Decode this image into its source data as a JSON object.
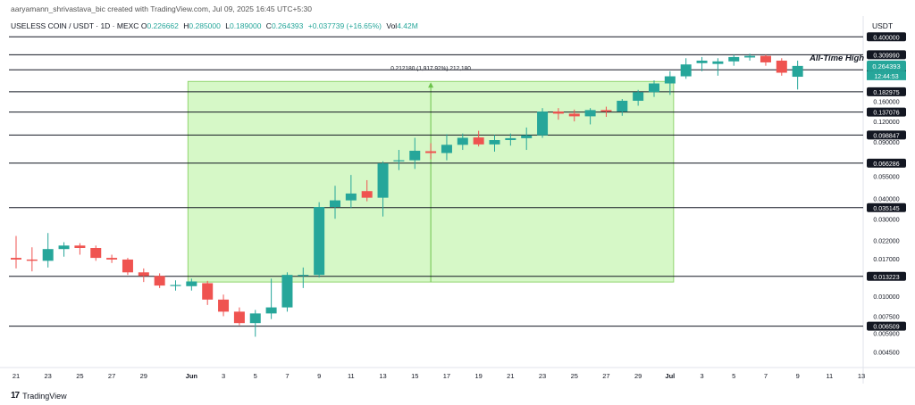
{
  "header": {
    "attribution": "aaryamann_shrivastava_bic created with TradingView.com, Jul 09, 2025 16:45 UTC+5:30",
    "symbol": "USELESS COIN / USDT · 1D · MEXC",
    "ohlc": [
      {
        "key": "O",
        "value": "0.226662"
      },
      {
        "key": "H",
        "value": "0.285000"
      },
      {
        "key": "L",
        "value": "0.189000"
      },
      {
        "key": "C",
        "value": "0.264393"
      }
    ],
    "change": "+0.037739 (+16.65%)",
    "volume_label": "Vol",
    "volume_value": "4.42M",
    "currency": "USDT"
  },
  "annotations": {
    "ath_label": "All-Time High",
    "measure_label": "0.212180 (1,917.92%) 212,180"
  },
  "footer": {
    "brand": "TradingView",
    "brand_mark": "17"
  },
  "colors": {
    "up": "#26a69a",
    "down": "#ef5350",
    "level_line": "#131722",
    "measure_fill": "#c8f5b4",
    "measure_border": "#8fd46e",
    "axis_text": "#131722"
  },
  "chart_data": {
    "type": "candlestick",
    "y_scale": "log",
    "ylim": [
      0.0038,
      0.45
    ],
    "levels": [
      "0.400000",
      "0.309990",
      "0.250139",
      "0.182975",
      "0.137076",
      "0.098847",
      "0.066286",
      "0.035145",
      "0.013223",
      "0.006509"
    ],
    "y_ticks": [
      "0.160000",
      "0.120000",
      "0.090000",
      "0.055000",
      "0.040000",
      "0.030000",
      "0.022000",
      "0.017000",
      "0.010000",
      "0.007500",
      "0.005900",
      "0.004500"
    ],
    "last_price": "0.264393",
    "countdown": "12:44:53",
    "x_ticks": [
      {
        "day": 0,
        "label": "21"
      },
      {
        "day": 2,
        "label": "23"
      },
      {
        "day": 4,
        "label": "25"
      },
      {
        "day": 6,
        "label": "27"
      },
      {
        "day": 8,
        "label": "29"
      },
      {
        "day": 11,
        "label": "Jun"
      },
      {
        "day": 13,
        "label": "3"
      },
      {
        "day": 15,
        "label": "5"
      },
      {
        "day": 17,
        "label": "7"
      },
      {
        "day": 19,
        "label": "9"
      },
      {
        "day": 21,
        "label": "11"
      },
      {
        "day": 23,
        "label": "13"
      },
      {
        "day": 25,
        "label": "15"
      },
      {
        "day": 27,
        "label": "17"
      },
      {
        "day": 29,
        "label": "19"
      },
      {
        "day": 31,
        "label": "21"
      },
      {
        "day": 33,
        "label": "23"
      },
      {
        "day": 35,
        "label": "25"
      },
      {
        "day": 37,
        "label": "27"
      },
      {
        "day": 39,
        "label": "29"
      },
      {
        "day": 41,
        "label": "Jul"
      },
      {
        "day": 43,
        "label": "3"
      },
      {
        "day": 45,
        "label": "5"
      },
      {
        "day": 47,
        "label": "7"
      },
      {
        "day": 49,
        "label": "9"
      },
      {
        "day": 51,
        "label": "11"
      },
      {
        "day": 53,
        "label": "13"
      }
    ],
    "measure_zone": {
      "day_start": 11,
      "day_end": 41,
      "price_low": 0.0122,
      "price_high": 0.212
    },
    "candles": [
      {
        "day": 0,
        "o": 0.0172,
        "h": 0.0235,
        "l": 0.0148,
        "c": 0.0168
      },
      {
        "day": 1,
        "o": 0.0168,
        "h": 0.02,
        "l": 0.0142,
        "c": 0.0165
      },
      {
        "day": 2,
        "o": 0.0165,
        "h": 0.0245,
        "l": 0.015,
        "c": 0.0195
      },
      {
        "day": 3,
        "o": 0.0195,
        "h": 0.0215,
        "l": 0.0175,
        "c": 0.0205
      },
      {
        "day": 4,
        "o": 0.0205,
        "h": 0.0212,
        "l": 0.018,
        "c": 0.0198
      },
      {
        "day": 5,
        "o": 0.0198,
        "h": 0.0205,
        "l": 0.0165,
        "c": 0.0172
      },
      {
        "day": 6,
        "o": 0.0172,
        "h": 0.018,
        "l": 0.016,
        "c": 0.0168
      },
      {
        "day": 7,
        "o": 0.0168,
        "h": 0.0172,
        "l": 0.0135,
        "c": 0.014
      },
      {
        "day": 8,
        "o": 0.014,
        "h": 0.0148,
        "l": 0.0122,
        "c": 0.0133
      },
      {
        "day": 9,
        "o": 0.0133,
        "h": 0.0138,
        "l": 0.0112,
        "c": 0.0116
      },
      {
        "day": 10,
        "o": 0.0116,
        "h": 0.0125,
        "l": 0.0108,
        "c": 0.0117
      },
      {
        "day": 11,
        "o": 0.0115,
        "h": 0.0128,
        "l": 0.0108,
        "c": 0.0123
      },
      {
        "day": 12,
        "o": 0.012,
        "h": 0.0124,
        "l": 0.0088,
        "c": 0.0095
      },
      {
        "day": 13,
        "o": 0.0095,
        "h": 0.0102,
        "l": 0.0075,
        "c": 0.008
      },
      {
        "day": 14,
        "o": 0.008,
        "h": 0.0085,
        "l": 0.0066,
        "c": 0.0068
      },
      {
        "day": 15,
        "o": 0.0068,
        "h": 0.0082,
        "l": 0.0056,
        "c": 0.0078
      },
      {
        "day": 16,
        "o": 0.0078,
        "h": 0.0128,
        "l": 0.0072,
        "c": 0.0085
      },
      {
        "day": 17,
        "o": 0.0085,
        "h": 0.014,
        "l": 0.008,
        "c": 0.0135
      },
      {
        "day": 18,
        "o": 0.0135,
        "h": 0.015,
        "l": 0.0112,
        "c": 0.0135
      },
      {
        "day": 19,
        "o": 0.0135,
        "h": 0.038,
        "l": 0.013,
        "c": 0.0355
      },
      {
        "day": 20,
        "o": 0.0355,
        "h": 0.048,
        "l": 0.03,
        "c": 0.039
      },
      {
        "day": 21,
        "o": 0.039,
        "h": 0.056,
        "l": 0.035,
        "c": 0.043
      },
      {
        "day": 22,
        "o": 0.0445,
        "h": 0.052,
        "l": 0.0385,
        "c": 0.0405
      },
      {
        "day": 23,
        "o": 0.0405,
        "h": 0.068,
        "l": 0.031,
        "c": 0.066
      },
      {
        "day": 24,
        "o": 0.069,
        "h": 0.08,
        "l": 0.06,
        "c": 0.069
      },
      {
        "day": 25,
        "o": 0.069,
        "h": 0.095,
        "l": 0.061,
        "c": 0.079
      },
      {
        "day": 26,
        "o": 0.0785,
        "h": 0.088,
        "l": 0.07,
        "c": 0.0765
      },
      {
        "day": 27,
        "o": 0.0765,
        "h": 0.1,
        "l": 0.069,
        "c": 0.086
      },
      {
        "day": 28,
        "o": 0.086,
        "h": 0.101,
        "l": 0.08,
        "c": 0.095
      },
      {
        "day": 29,
        "o": 0.0955,
        "h": 0.105,
        "l": 0.084,
        "c": 0.0865
      },
      {
        "day": 30,
        "o": 0.0865,
        "h": 0.099,
        "l": 0.078,
        "c": 0.092
      },
      {
        "day": 31,
        "o": 0.092,
        "h": 0.101,
        "l": 0.085,
        "c": 0.0945
      },
      {
        "day": 32,
        "o": 0.0945,
        "h": 0.11,
        "l": 0.08,
        "c": 0.0985
      },
      {
        "day": 33,
        "o": 0.0985,
        "h": 0.145,
        "l": 0.095,
        "c": 0.138
      },
      {
        "day": 34,
        "o": 0.138,
        "h": 0.145,
        "l": 0.123,
        "c": 0.134
      },
      {
        "day": 35,
        "o": 0.134,
        "h": 0.142,
        "l": 0.12,
        "c": 0.129
      },
      {
        "day": 36,
        "o": 0.129,
        "h": 0.145,
        "l": 0.115,
        "c": 0.141
      },
      {
        "day": 37,
        "o": 0.141,
        "h": 0.148,
        "l": 0.128,
        "c": 0.138
      },
      {
        "day": 38,
        "o": 0.138,
        "h": 0.165,
        "l": 0.13,
        "c": 0.161
      },
      {
        "day": 39,
        "o": 0.161,
        "h": 0.188,
        "l": 0.15,
        "c": 0.182
      },
      {
        "day": 40,
        "o": 0.182,
        "h": 0.215,
        "l": 0.17,
        "c": 0.206
      },
      {
        "day": 41,
        "o": 0.206,
        "h": 0.245,
        "l": 0.175,
        "c": 0.228
      },
      {
        "day": 42,
        "o": 0.228,
        "h": 0.295,
        "l": 0.22,
        "c": 0.27
      },
      {
        "day": 43,
        "o": 0.275,
        "h": 0.3,
        "l": 0.245,
        "c": 0.285
      },
      {
        "day": 44,
        "o": 0.272,
        "h": 0.295,
        "l": 0.23,
        "c": 0.282
      },
      {
        "day": 45,
        "o": 0.282,
        "h": 0.31,
        "l": 0.265,
        "c": 0.3
      },
      {
        "day": 46,
        "o": 0.298,
        "h": 0.315,
        "l": 0.285,
        "c": 0.305
      },
      {
        "day": 47,
        "o": 0.305,
        "h": 0.31,
        "l": 0.265,
        "c": 0.278
      },
      {
        "day": 48,
        "o": 0.285,
        "h": 0.295,
        "l": 0.23,
        "c": 0.24
      },
      {
        "day": 49,
        "o": 0.2266,
        "h": 0.285,
        "l": 0.189,
        "c": 0.2644
      }
    ]
  }
}
